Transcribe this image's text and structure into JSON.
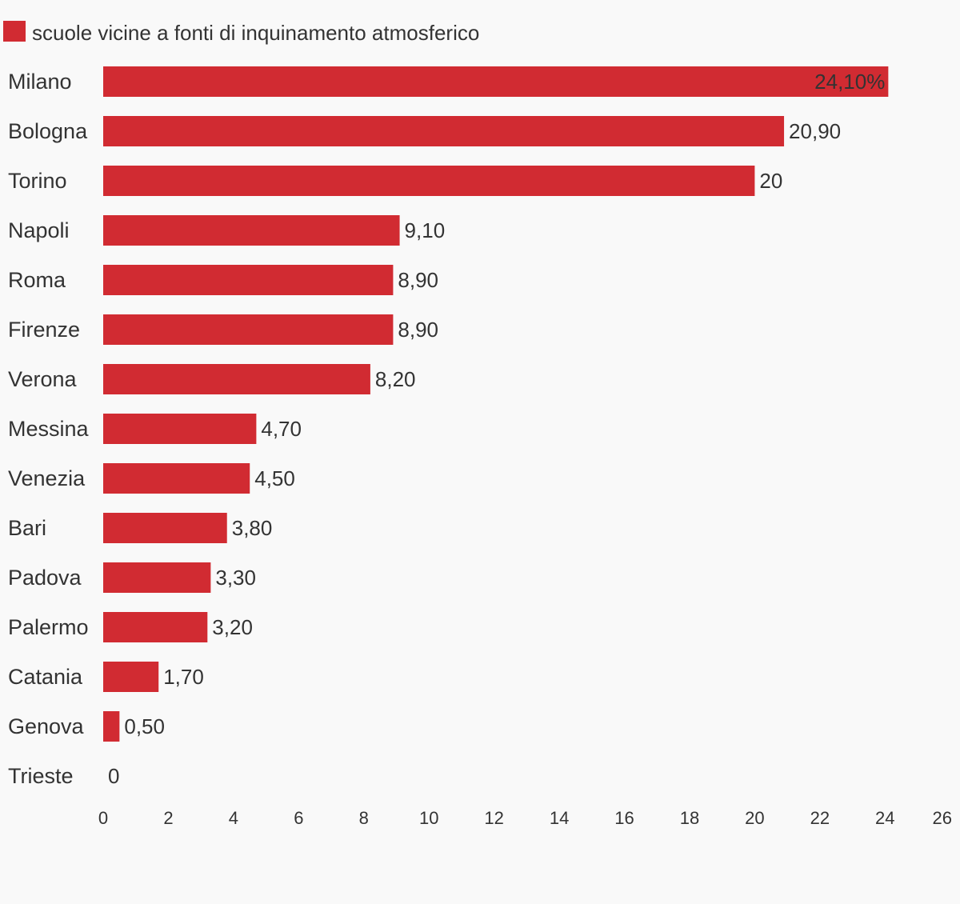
{
  "chart_data": {
    "type": "bar",
    "orientation": "horizontal",
    "title": "",
    "xlabel": "",
    "ylabel": "",
    "xlim": [
      0,
      26
    ],
    "ticks": [
      "0",
      "2",
      "4",
      "6",
      "8",
      "10",
      "12",
      "14",
      "16",
      "18",
      "20",
      "22",
      "24",
      "26"
    ],
    "grid": false,
    "legend": {
      "position": "top-left",
      "label": "scuole vicine a fonti di inquinamento atmosferico"
    },
    "categories": [
      "Milano",
      "Bologna",
      "Torino",
      "Napoli",
      "Roma",
      "Firenze",
      "Verona",
      "Messina",
      "Venezia",
      "Bari",
      "Padova",
      "Palermo",
      "Catania",
      "Genova",
      "Trieste"
    ],
    "values": [
      24.1,
      20.9,
      20,
      9.1,
      8.9,
      8.9,
      8.2,
      4.7,
      4.5,
      3.8,
      3.3,
      3.2,
      1.7,
      0.5,
      0
    ],
    "value_labels": [
      "24,10%",
      "20,90",
      "20",
      "9,10",
      "8,90",
      "8,90",
      "8,20",
      "4,70",
      "4,50",
      "3,80",
      "3,30",
      "3,20",
      "1,70",
      "0,50",
      "0"
    ],
    "bar_color": "#d12b32"
  }
}
